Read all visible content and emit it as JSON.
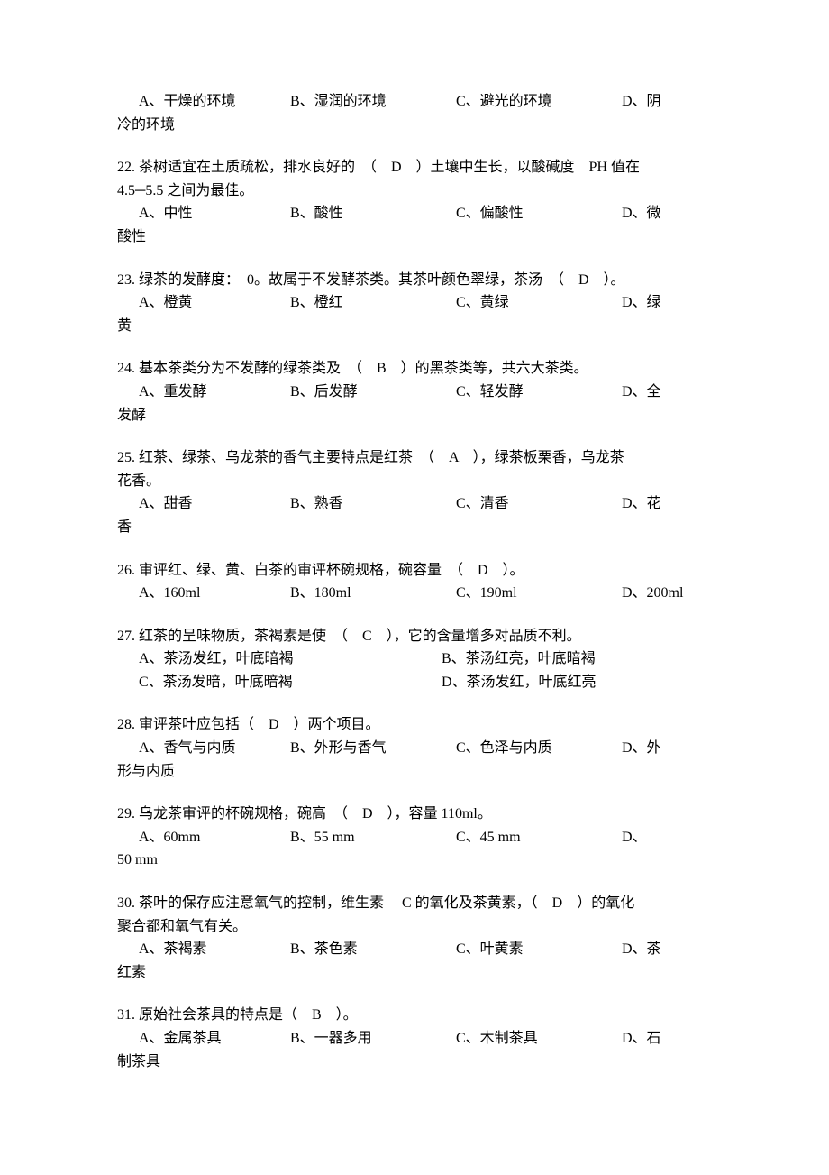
{
  "q21_opts": {
    "a": "A、干燥的环境",
    "b": "B、湿润的环境",
    "c": "C、避光的环境",
    "d": "D、阴",
    "d_wrap": "冷的环境"
  },
  "q22": {
    "stem1": "22. 茶树适宜在土质疏松，排水良好的　（　D　）土壤中生长，以酸碱度　PH 值在",
    "stem2": "4.5─5.5 之间为最佳。",
    "a": "A、中性",
    "b": "B、酸性",
    "c": "C、偏酸性",
    "d": "D、微",
    "d_wrap": "酸性"
  },
  "q23": {
    "stem": "23. 绿茶的发酵度：　0。故属于不发酵茶类。其茶叶颜色翠绿，茶汤　（　D　）。",
    "a": "A、橙黄",
    "b": "B、橙红",
    "c": "C、黄绿",
    "d": "D、绿",
    "d_wrap": "黄"
  },
  "q24": {
    "stem": "24. 基本茶类分为不发酵的绿茶类及　（　B　）的黑茶类等，共六大茶类。",
    "a": "A、重发酵",
    "b": "B、后发酵",
    "c": "C、轻发酵",
    "d": "D、全",
    "d_wrap": "发酵"
  },
  "q25": {
    "stem": "25. 红茶、绿茶、乌龙茶的香气主要特点是红茶　（　A　），绿茶板栗香，乌龙茶",
    "stem2": "花香。",
    "a": "A、甜香",
    "b": "B、熟香",
    "c": "C、清香",
    "d": "D、花",
    "d_wrap": "香"
  },
  "q26": {
    "stem": "26. 审评红、绿、黄、白茶的审评杯碗规格，碗容量　（　D　）。",
    "a": "A、160ml",
    "b": "B、180ml",
    "c": "C、190ml",
    "d": "D、200ml"
  },
  "q27": {
    "stem": "27. 红茶的呈味物质，茶褐素是使　（　C　），它的含量增多对品质不利。",
    "a": "A、茶汤发红，叶底暗褐",
    "b": "B、茶汤红亮，叶底暗褐",
    "c": "C、茶汤发暗，叶底暗褐",
    "d": "D、茶汤发红，叶底红亮"
  },
  "q28": {
    "stem": "28. 审评茶叶应包括（　D　）两个项目。",
    "a": "A、香气与内质",
    "b": "B、外形与香气",
    "c": "C、色泽与内质",
    "d": "D、外",
    "d_wrap": "形与内质"
  },
  "q29": {
    "stem": "29. 乌龙茶审评的杯碗规格，碗高　（　D　），容量 110ml。",
    "a": "A、60mm",
    "b": "B、55 mm",
    "c": "C、45 mm",
    "d": "D、",
    "d_wrap": "50 mm"
  },
  "q30": {
    "stem1": "30. 茶叶的保存应注意氧气的控制，维生素　 C 的氧化及茶黄素，（　D　）的氧化",
    "stem2": "聚合都和氧气有关。",
    "a": "A、茶褐素",
    "b": "B、茶色素",
    "c": "C、叶黄素",
    "d": "D、茶",
    "d_wrap": "红素"
  },
  "q31": {
    "stem": "31. 原始社会茶具的特点是（　B　）。",
    "a": "A、金属茶具",
    "b": "B、一器多用",
    "c": "C、木制茶具",
    "d": "D、石",
    "d_wrap": "制茶具"
  }
}
